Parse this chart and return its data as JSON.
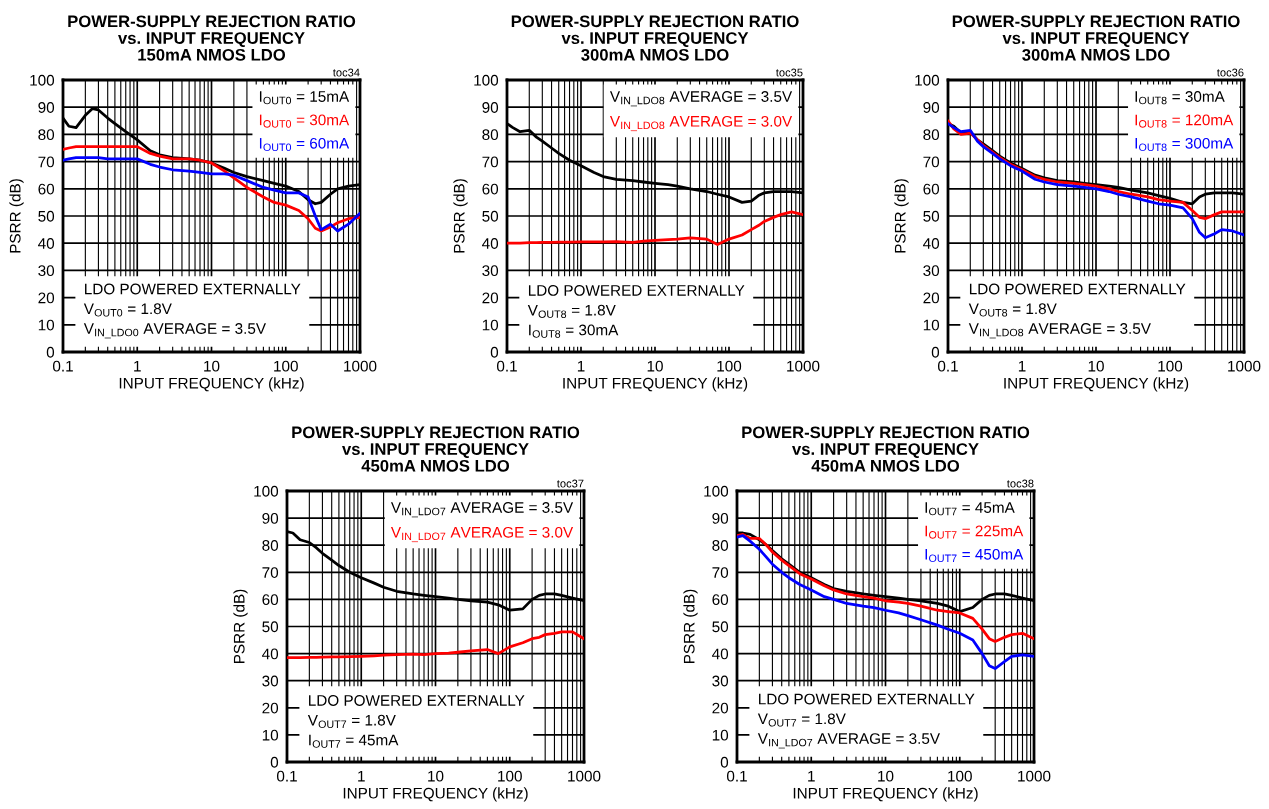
{
  "chart_data": [
    {
      "type": "line",
      "title": "POWER-SUPPLY REJECTION RATIO\nvs. INPUT FREQUENCY\n150mA NMOS LDO",
      "xlabel": "INPUT FREQUENCY (kHz)",
      "ylabel": "PSRR (dB)",
      "log": "x",
      "grid": true,
      "legend": "top right",
      "xlim": [
        0.1,
        1000
      ],
      "ylim": [
        0,
        100
      ],
      "xticks": [
        0.1,
        1,
        10,
        100,
        1000
      ],
      "yticks": [
        0,
        10,
        20,
        30,
        40,
        50,
        60,
        70,
        80,
        90,
        100
      ],
      "annotations": [
        "toc34",
        "LDO POWERED EXTERNALLY\nV$_{OUT0}$ = 1.8V\nV$_{IN_LDO0}$ AVERAGE = 3.5V"
      ],
      "x": [
        0.1,
        0.12,
        0.15,
        0.2,
        0.25,
        0.3,
        0.4,
        0.5,
        0.7,
        1,
        1.5,
        2,
        3,
        5,
        7,
        10,
        15,
        20,
        30,
        50,
        70,
        100,
        150,
        200,
        250,
        300,
        400,
        500,
        700,
        1000
      ],
      "series": [
        {
          "name": "I$_{OUT0}$ = 15mA",
          "color": "#000000",
          "values": [
            86,
            83,
            82.5,
            87,
            89.5,
            89,
            86,
            84,
            81,
            78,
            74,
            72.5,
            71.5,
            71,
            70.5,
            69.5,
            67.5,
            66,
            64.5,
            63,
            62,
            61,
            59,
            56,
            54.5,
            55,
            58,
            60,
            61,
            61.5
          ]
        },
        {
          "name": "I$_{OUT0}$ = 30mA",
          "color": "#ff0000",
          "values": [
            74.5,
            75,
            75.5,
            75.5,
            75.5,
            75.5,
            75.5,
            75.5,
            75.5,
            75.5,
            73,
            72,
            71,
            71,
            70.5,
            69.5,
            66.5,
            64,
            60.5,
            57,
            55,
            54,
            52,
            49,
            45.5,
            44.5,
            46,
            47.5,
            49,
            49.5
          ]
        },
        {
          "name": "I$_{OUT0}$ = 60mA",
          "color": "#0000ff",
          "values": [
            70.5,
            71,
            71.5,
            71.5,
            71.5,
            71.5,
            71,
            71,
            71,
            71,
            69,
            68,
            67,
            66.5,
            66,
            65.5,
            65.5,
            65,
            63,
            60.5,
            59.5,
            58.5,
            58.5,
            57,
            50,
            45,
            47,
            44.5,
            47,
            51
          ]
        }
      ]
    },
    {
      "type": "line",
      "title": "POWER-SUPPLY REJECTION RATIO\nvs. INPUT FREQUENCY\n300mA NMOS LDO",
      "xlabel": "INPUT FREQUENCY (kHz)",
      "ylabel": "PSRR (dB)",
      "log": "x",
      "grid": true,
      "legend": "top right",
      "xlim": [
        0.1,
        1000
      ],
      "ylim": [
        0,
        100
      ],
      "xticks": [
        0.1,
        1,
        10,
        100,
        1000
      ],
      "yticks": [
        0,
        10,
        20,
        30,
        40,
        50,
        60,
        70,
        80,
        90,
        100
      ],
      "annotations": [
        "toc35",
        "LDO POWERED EXTERNALLY\nV$_{OUT8}$ = 1.8V\nI$_{OUT8}$ = 30mA"
      ],
      "x": [
        0.1,
        0.12,
        0.15,
        0.2,
        0.25,
        0.3,
        0.4,
        0.5,
        0.7,
        1,
        1.5,
        2,
        3,
        5,
        7,
        10,
        15,
        20,
        30,
        50,
        70,
        100,
        150,
        200,
        250,
        300,
        400,
        500,
        700,
        1000
      ],
      "series": [
        {
          "name": "V$_{IN_LDO8}$ AVERAGE = 3.5V",
          "color": "#000000",
          "values": [
            84,
            82.5,
            81,
            81.5,
            79,
            77.5,
            75,
            73,
            70.5,
            68.5,
            66,
            64.5,
            63.5,
            63,
            62.5,
            62,
            61.5,
            61,
            60,
            59,
            58,
            57,
            55,
            55.5,
            57.5,
            58.5,
            59,
            59,
            59,
            58.5
          ]
        },
        {
          "name": "V$_{IN_LDO8}$ AVERAGE = 3.0V",
          "color": "#ff0000",
          "values": [
            40,
            40,
            40,
            40.2,
            40.2,
            40.3,
            40.3,
            40.4,
            40.4,
            40.5,
            40.5,
            40.5,
            40.6,
            40.3,
            40.8,
            41,
            41.3,
            41.5,
            42,
            41.5,
            39.5,
            41.5,
            43,
            45,
            46.5,
            48,
            49.5,
            50.5,
            51.5,
            50.5
          ]
        }
      ]
    },
    {
      "type": "line",
      "title": "POWER-SUPPLY REJECTION RATIO\nvs. INPUT FREQUENCY\n300mA NMOS LDO",
      "xlabel": "INPUT FREQUENCY (kHz)",
      "ylabel": "PSRR (dB)",
      "log": "x",
      "grid": true,
      "legend": "top right",
      "xlim": [
        0.1,
        1000
      ],
      "ylim": [
        0,
        100
      ],
      "xticks": [
        0.1,
        1,
        10,
        100,
        1000
      ],
      "yticks": [
        0,
        10,
        20,
        30,
        40,
        50,
        60,
        70,
        80,
        90,
        100
      ],
      "annotations": [
        "toc36",
        "LDO POWERED EXTERNALLY\nV$_{OUT8}$ = 1.8V\nV$_{IN_LDO8}$ AVERAGE = 3.5V"
      ],
      "x": [
        0.1,
        0.12,
        0.15,
        0.2,
        0.25,
        0.3,
        0.4,
        0.5,
        0.7,
        1,
        1.5,
        2,
        3,
        5,
        7,
        10,
        15,
        20,
        30,
        50,
        70,
        100,
        150,
        200,
        250,
        300,
        400,
        500,
        700,
        1000
      ],
      "series": [
        {
          "name": "I$_{OUT8}$ = 30mA",
          "color": "#000000",
          "values": [
            84,
            83,
            80.5,
            81,
            78,
            76.5,
            74,
            72,
            69.5,
            67.5,
            65,
            64,
            63,
            62.5,
            62,
            61.5,
            61,
            60.5,
            59.5,
            58.5,
            57.5,
            56.5,
            55,
            54.5,
            57,
            58,
            58.5,
            58.5,
            58.5,
            58
          ]
        },
        {
          "name": "I$_{OUT8}$ = 120mA",
          "color": "#ff0000",
          "values": [
            85,
            82,
            80,
            80.5,
            78,
            76,
            73.5,
            71.5,
            69,
            67,
            64.5,
            63.5,
            62.5,
            62,
            61.5,
            61,
            60,
            59,
            58,
            57,
            56,
            55.5,
            55,
            52,
            49.5,
            49,
            50.5,
            51.5,
            51.5,
            51.5
          ]
        },
        {
          "name": "I$_{OUT8}$ = 300mA",
          "color": "#0000ff",
          "values": [
            84,
            82.5,
            81,
            81.5,
            77.5,
            75.5,
            73,
            71,
            68.5,
            66.5,
            63.5,
            62.5,
            61.5,
            61,
            60.5,
            60,
            59,
            58,
            57,
            55.5,
            54.5,
            54,
            53,
            49,
            44,
            42,
            43.5,
            45,
            44.5,
            43
          ]
        }
      ]
    },
    {
      "type": "line",
      "title": "POWER-SUPPLY REJECTION RATIO\nvs. INPUT FREQUENCY\n450mA NMOS LDO",
      "xlabel": "INPUT FREQUENCY (kHz)",
      "ylabel": "PSRR (dB)",
      "log": "x",
      "grid": true,
      "legend": "top right",
      "xlim": [
        0.1,
        1000
      ],
      "ylim": [
        0,
        100
      ],
      "xticks": [
        0.1,
        1,
        10,
        100,
        1000
      ],
      "yticks": [
        0,
        10,
        20,
        30,
        40,
        50,
        60,
        70,
        80,
        90,
        100
      ],
      "annotations": [
        "toc37",
        "LDO POWERED EXTERNALLY\nV$_{OUT7}$ = 1.8V\nI$_{OUT7}$ = 45mA"
      ],
      "x": [
        0.1,
        0.12,
        0.15,
        0.2,
        0.25,
        0.3,
        0.4,
        0.5,
        0.7,
        1,
        1.5,
        2,
        3,
        5,
        7,
        10,
        15,
        20,
        30,
        50,
        70,
        100,
        150,
        200,
        250,
        300,
        400,
        500,
        700,
        1000
      ],
      "series": [
        {
          "name": "V$_{IN_LDO7}$ AVERAGE = 3.5V",
          "color": "#000000",
          "values": [
            85,
            84.5,
            82,
            81,
            79,
            77,
            74.5,
            72.5,
            70,
            68,
            66,
            64.5,
            63,
            62,
            61.5,
            61,
            60.5,
            60,
            59.5,
            59,
            58,
            56,
            56.5,
            60,
            61.5,
            62,
            62,
            61.5,
            60.5,
            59.5
          ]
        },
        {
          "name": "V$_{IN_LDO7}$ AVERAGE = 3.0V",
          "color": "#ff0000",
          "values": [
            38.5,
            38.5,
            38.5,
            38.6,
            38.6,
            38.7,
            38.8,
            38.8,
            38.9,
            39,
            39.2,
            39.4,
            39.6,
            39.8,
            39.6,
            40,
            40.2,
            40.5,
            41,
            41.5,
            40,
            42.5,
            44,
            45.5,
            46,
            47,
            47.5,
            48,
            48,
            45.5
          ]
        }
      ]
    },
    {
      "type": "line",
      "title": "POWER-SUPPLY REJECTION RATIO\nvs. INPUT FREQUENCY\n450mA NMOS LDO",
      "xlabel": "INPUT FREQUENCY (kHz)",
      "ylabel": "PSRR (dB)",
      "log": "x",
      "grid": true,
      "legend": "top right",
      "xlim": [
        0.1,
        1000
      ],
      "ylim": [
        0,
        100
      ],
      "xticks": [
        0.1,
        1,
        10,
        100,
        1000
      ],
      "yticks": [
        0,
        10,
        20,
        30,
        40,
        50,
        60,
        70,
        80,
        90,
        100
      ],
      "annotations": [
        "toc38",
        "LDO POWERED EXTERNALLY\nV$_{OUT7}$ = 1.8V\nV$_{IN_LDO7}$ AVERAGE = 3.5V"
      ],
      "x": [
        0.1,
        0.12,
        0.15,
        0.2,
        0.25,
        0.3,
        0.4,
        0.5,
        0.7,
        1,
        1.5,
        2,
        3,
        5,
        7,
        10,
        15,
        20,
        30,
        50,
        70,
        100,
        150,
        200,
        250,
        300,
        400,
        500,
        700,
        1000
      ],
      "series": [
        {
          "name": "I$_{OUT7}$ = 45mA",
          "color": "#000000",
          "values": [
            84.5,
            84.5,
            84,
            82,
            80,
            78,
            75,
            73,
            70,
            68,
            65.5,
            64,
            63,
            62,
            61.5,
            61,
            60.5,
            60,
            59.5,
            58.5,
            57.5,
            55.5,
            57,
            60,
            61.5,
            62,
            62,
            61.5,
            60.5,
            59.5
          ]
        },
        {
          "name": "I$_{OUT7}$ = 225mA",
          "color": "#ff0000",
          "values": [
            83.5,
            84,
            82.5,
            82.5,
            80,
            77.5,
            74.5,
            72.5,
            69.5,
            67.5,
            65,
            63.5,
            62,
            61,
            60.5,
            59.5,
            59,
            58.5,
            57.5,
            56,
            55.5,
            55,
            53,
            49,
            45.5,
            44.5,
            46,
            47,
            47.5,
            45.5
          ]
        },
        {
          "name": "I$_{OUT7}$ = 450mA",
          "color": "#0000ff",
          "values": [
            83,
            83.5,
            81.5,
            78.5,
            75.5,
            73,
            70,
            68,
            65.5,
            63.5,
            61,
            60,
            58.5,
            57.5,
            57,
            56,
            55,
            54,
            52.5,
            50.5,
            49,
            47.5,
            45,
            40,
            35.5,
            34.5,
            37,
            39,
            39.5,
            39
          ]
        }
      ]
    }
  ]
}
